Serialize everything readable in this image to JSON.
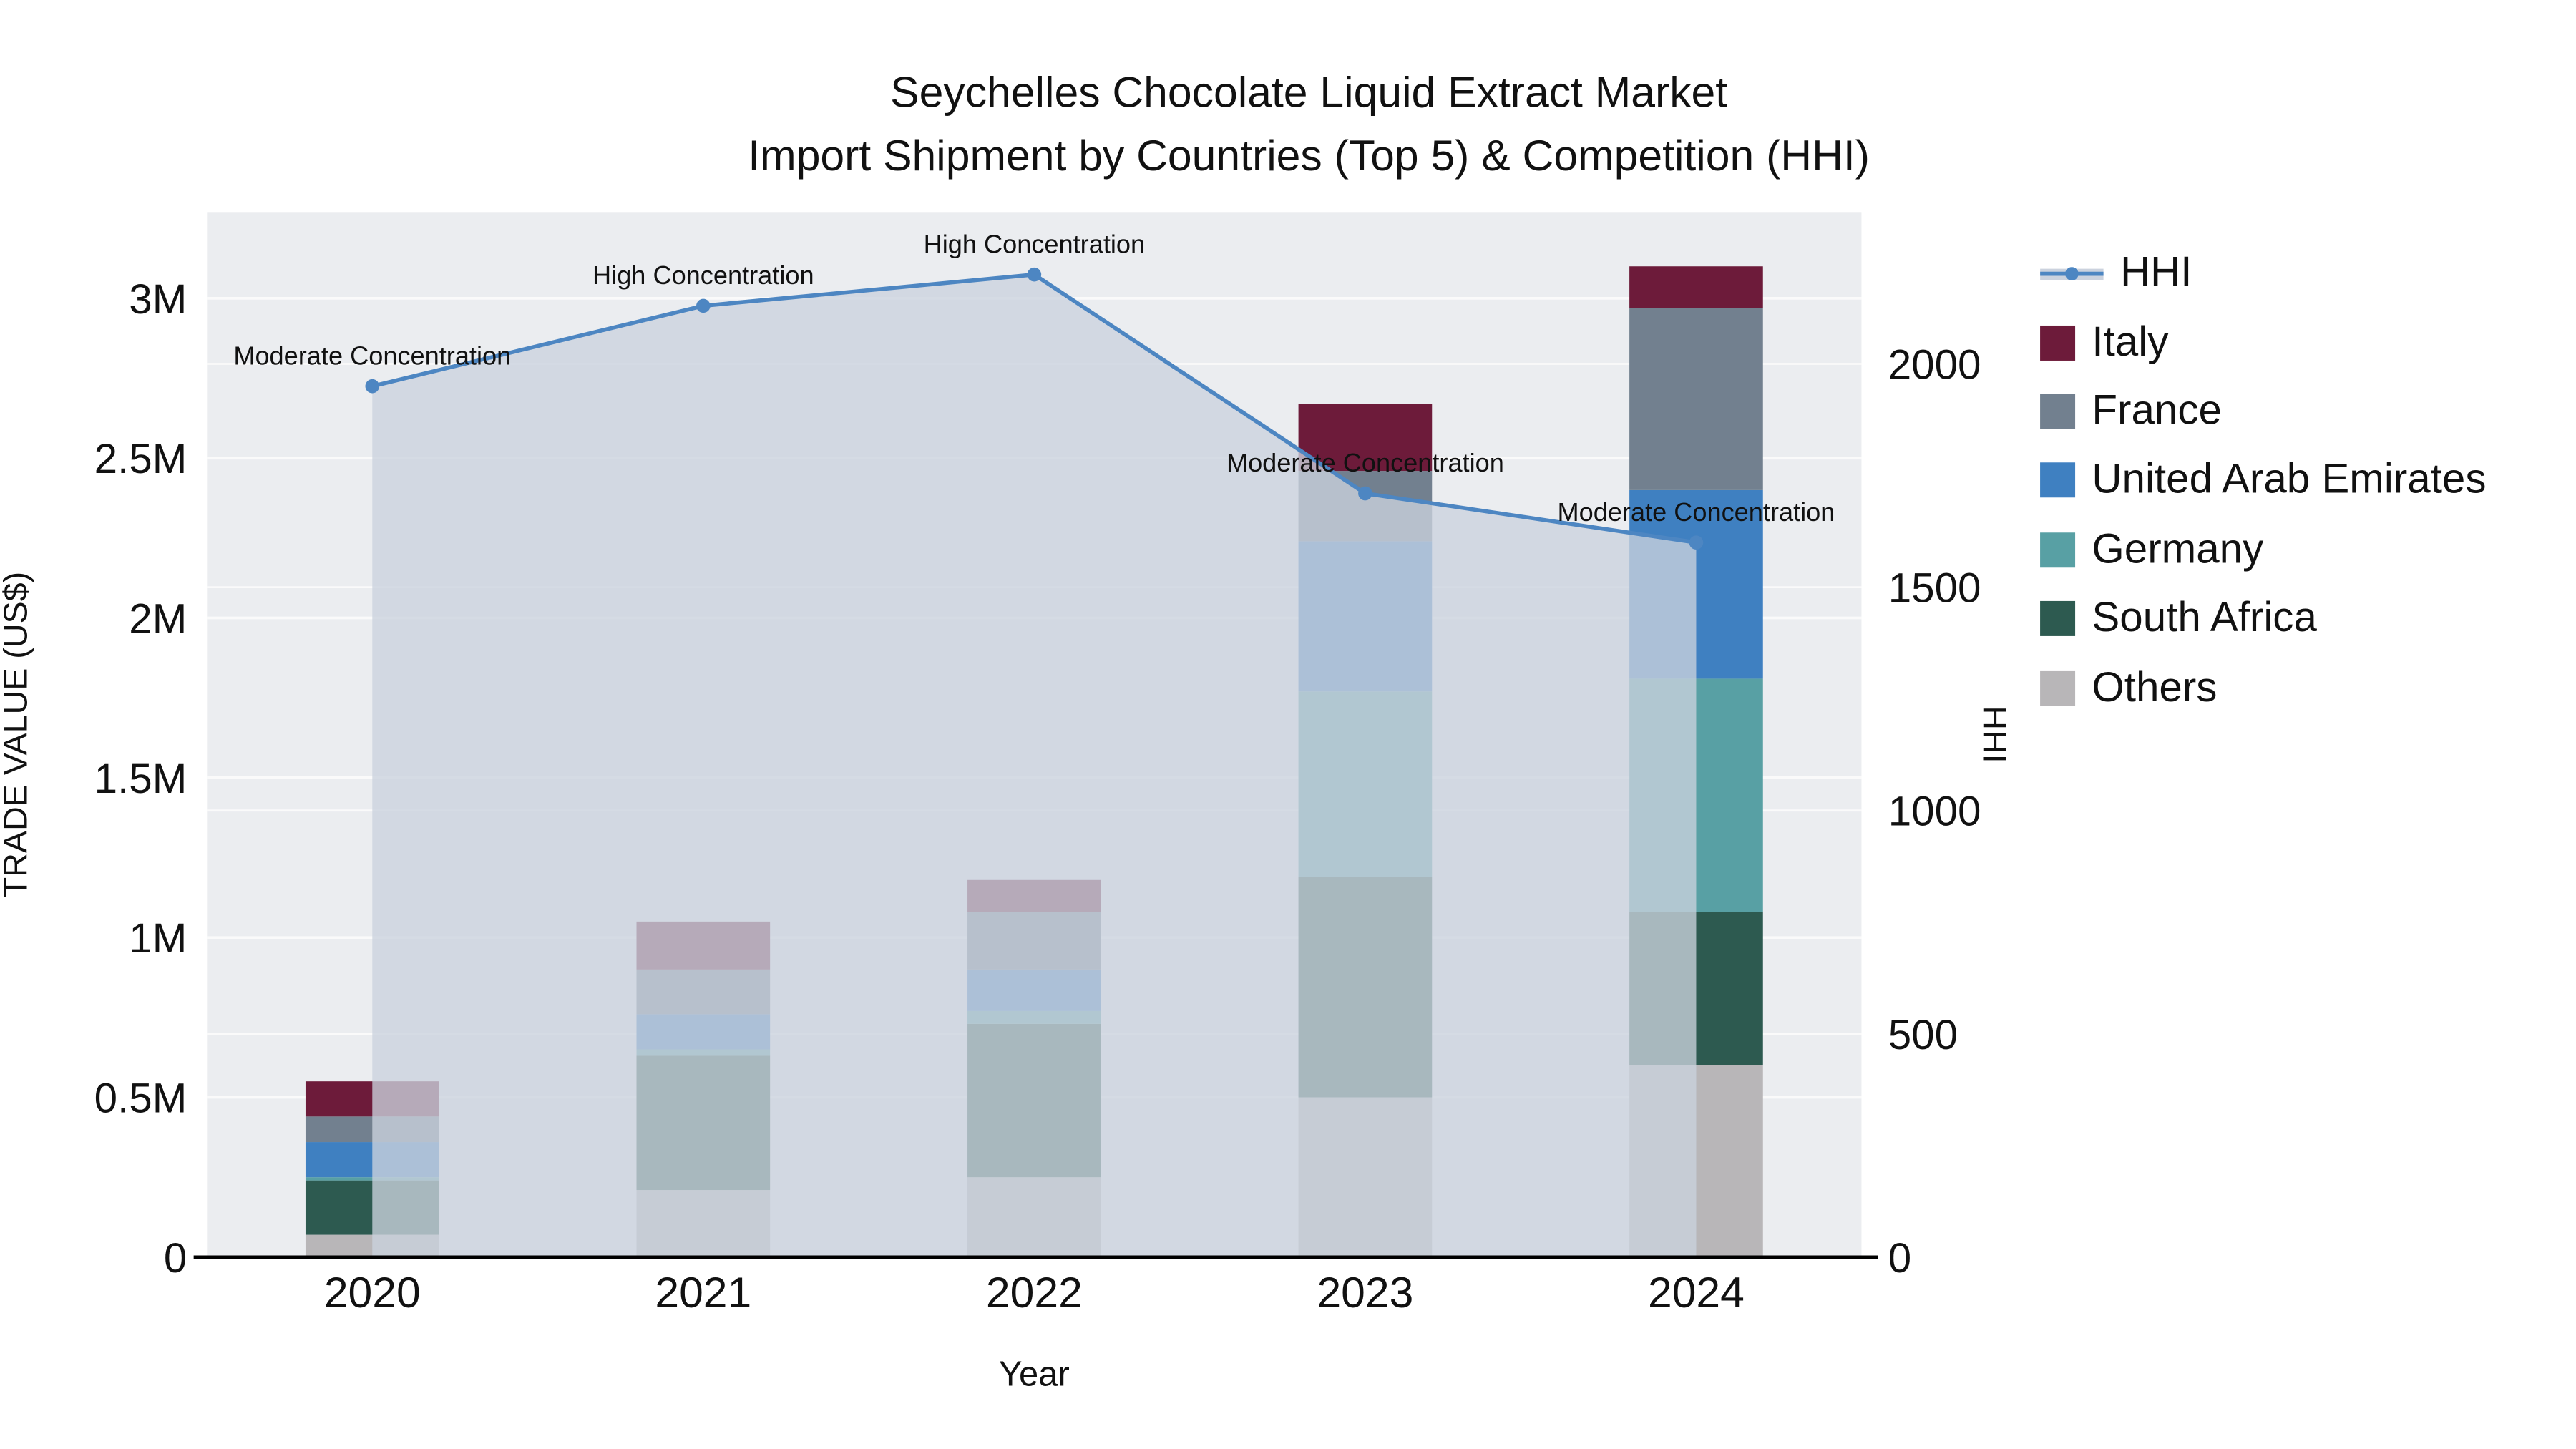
{
  "chart_data": {
    "type": "bar",
    "combo": "stacked-bar + line-area, dual y-axis",
    "title_line1": "Seychelles Chocolate Liquid Extract Market",
    "title_line2": "Import Shipment by Countries (Top 5) & Competition (HHI)",
    "xlabel": "Year",
    "ylabel_left": "TRADE VALUE (US$)",
    "ylabel_right": "HHI",
    "categories": [
      2020,
      2021,
      2022,
      2023,
      2024
    ],
    "bar_series": [
      {
        "name": "Others",
        "color": "#b8b6b8",
        "values": [
          70000,
          210000,
          250000,
          500000,
          600000
        ]
      },
      {
        "name": "South Africa",
        "color": "#2d5a50",
        "values": [
          170000,
          420000,
          480000,
          690000,
          480000
        ]
      },
      {
        "name": "Germany",
        "color": "#58a0a4",
        "values": [
          10000,
          20000,
          40000,
          580000,
          730000
        ]
      },
      {
        "name": "United Arab Emirates",
        "color": "#3f80c1",
        "values": [
          110000,
          110000,
          130000,
          470000,
          590000
        ]
      },
      {
        "name": "France",
        "color": "#72808f",
        "values": [
          80000,
          140000,
          180000,
          220000,
          570000
        ]
      },
      {
        "name": "Italy",
        "color": "#6d1b3a",
        "values": [
          110000,
          150000,
          100000,
          210000,
          130000
        ]
      }
    ],
    "line_series": {
      "name": "HHI",
      "color": "#4d86c2",
      "fill": "#cbd2de",
      "values": [
        1950,
        2130,
        2200,
        1710,
        1600
      ]
    },
    "annotations": [
      "Moderate Concentration",
      "High Concentration",
      "High Concentration",
      "Moderate Concentration",
      "Moderate Concentration"
    ],
    "left_axis": {
      "ticks": [
        "0",
        "0.5M",
        "1M",
        "1.5M",
        "2M",
        "2.5M",
        "3M"
      ],
      "tick_values": [
        0,
        500000,
        1000000,
        1500000,
        2000000,
        2500000,
        3000000
      ],
      "max": 3270000
    },
    "right_axis": {
      "ticks": [
        "0",
        "500",
        "1000",
        "1500",
        "2000"
      ],
      "tick_values": [
        0,
        500,
        1000,
        1500,
        2000
      ],
      "max": 2340
    },
    "legend": [
      {
        "label": "HHI",
        "type": "line",
        "color": "#4d86c2"
      },
      {
        "label": "Italy",
        "type": "swatch",
        "color": "#6d1b3a"
      },
      {
        "label": "France",
        "type": "swatch",
        "color": "#72808f"
      },
      {
        "label": "United Arab Emirates",
        "type": "swatch",
        "color": "#3f80c1"
      },
      {
        "label": "Germany",
        "type": "swatch",
        "color": "#58a0a4"
      },
      {
        "label": "South Africa",
        "type": "swatch",
        "color": "#2d5a50"
      },
      {
        "label": "Others",
        "type": "swatch",
        "color": "#b8b6b8"
      }
    ],
    "plot_background": "#ebedf0",
    "gridline_color": "#fafafa"
  }
}
